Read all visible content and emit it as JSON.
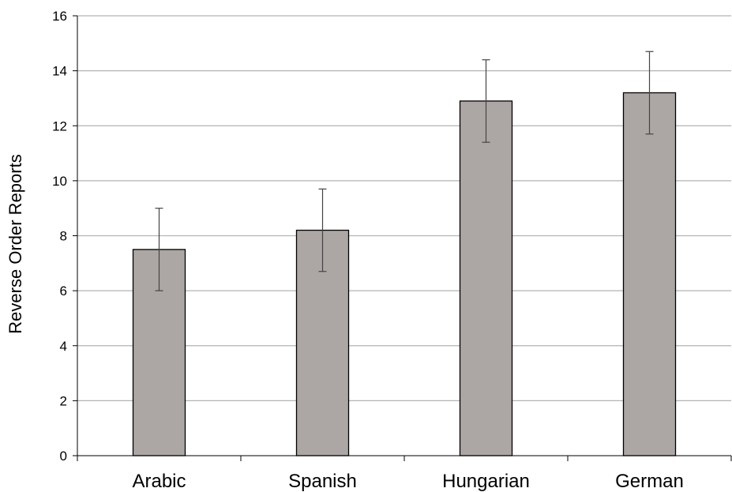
{
  "chart_data": {
    "type": "bar",
    "title": "",
    "xlabel": "",
    "ylabel": "Reverse Order Reports",
    "categories": [
      "Arabic",
      "Spanish",
      "Hungarian",
      "German"
    ],
    "values": [
      7.5,
      8.2,
      12.9,
      13.2
    ],
    "error_low": [
      6.0,
      6.7,
      11.4,
      11.7
    ],
    "error_high": [
      9.0,
      9.7,
      14.4,
      14.7
    ],
    "ylim": [
      0,
      16
    ],
    "yticks": [
      0,
      2,
      4,
      6,
      8,
      10,
      12,
      14,
      16
    ],
    "grid": true,
    "legend": "none",
    "bar_color": "#aca7a5",
    "bar_stroke": "#000000",
    "grid_color": "#b3b3b3",
    "error_color": "#444444"
  }
}
